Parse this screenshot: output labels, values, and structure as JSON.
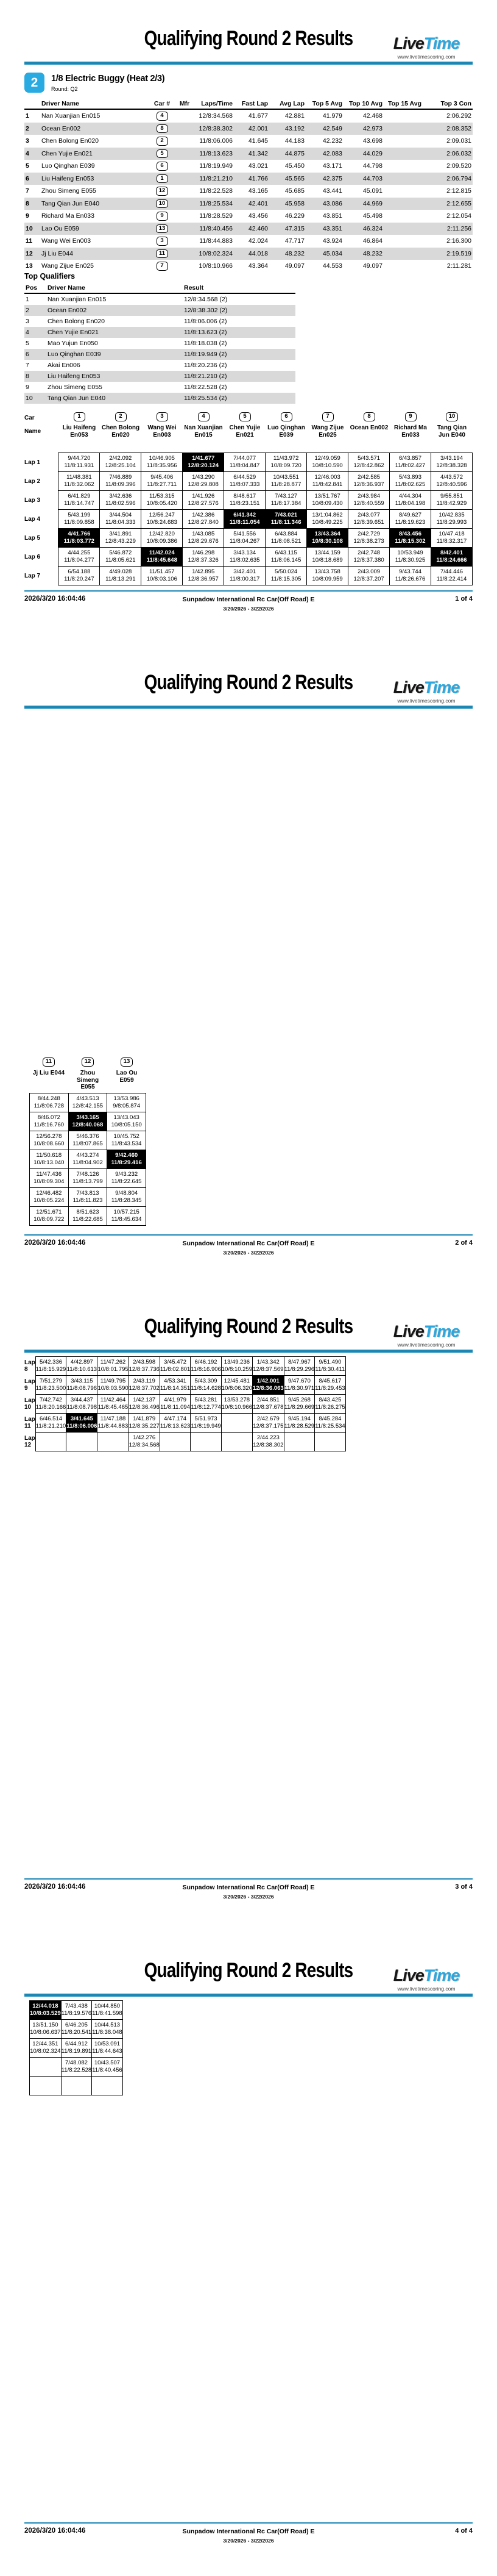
{
  "header": {
    "title": "Qualifying Round 2 Results",
    "logo_live": "Live",
    "logo_time": "Time",
    "url": "www.livetimescoring.com"
  },
  "footer": {
    "timestamp": "2026/3/20 16:04:46",
    "event": "Sunpadow International Rc Car(Off Road) E",
    "dates": "3/20/2026 - 3/22/2026",
    "pages": [
      "1 of 4",
      "2 of 4",
      "3 of 4",
      "4 of 4"
    ]
  },
  "heat": {
    "number": "2",
    "title": "1/8 Electric Buggy (Heat 2/3)",
    "round": "Round: Q2"
  },
  "results": {
    "columns": [
      "Driver Name",
      "Car #",
      "Mfr",
      "Laps/Time",
      "Fast Lap",
      "Avg Lap",
      "Top 5 Avg",
      "Top 10 Avg",
      "Top 15 Avg",
      "Top 3 Con"
    ],
    "rows": [
      [
        "1",
        "Nan Xuanjian En015",
        "4",
        "",
        "12/8:34.568",
        "41.677",
        "42.881",
        "41.979",
        "42.468",
        "",
        "2:06.292"
      ],
      [
        "2",
        "Ocean En002",
        "8",
        "",
        "12/8:38.302",
        "42.001",
        "43.192",
        "42.549",
        "42.973",
        "",
        "2:08.352"
      ],
      [
        "3",
        "Chen Bolong En020",
        "2",
        "",
        "11/8:06.006",
        "41.645",
        "44.183",
        "42.232",
        "43.698",
        "",
        "2:09.031"
      ],
      [
        "4",
        "Chen Yujie En021",
        "5",
        "",
        "11/8:13.623",
        "41.342",
        "44.875",
        "42.083",
        "44.029",
        "",
        "2:06.032"
      ],
      [
        "5",
        "Luo Qinghan E039",
        "6",
        "",
        "11/8:19.949",
        "43.021",
        "45.450",
        "43.171",
        "44.798",
        "",
        "2:09.520"
      ],
      [
        "6",
        "Liu Haifeng En053",
        "1",
        "",
        "11/8:21.210",
        "41.766",
        "45.565",
        "42.375",
        "44.703",
        "",
        "2:06.794"
      ],
      [
        "7",
        "Zhou Simeng E055",
        "12",
        "",
        "11/8:22.528",
        "43.165",
        "45.685",
        "43.441",
        "45.091",
        "",
        "2:12.815"
      ],
      [
        "8",
        "Tang Qian Jun E040",
        "10",
        "",
        "11/8:25.534",
        "42.401",
        "45.958",
        "43.086",
        "44.969",
        "",
        "2:12.655"
      ],
      [
        "9",
        "Richard Ma En033",
        "9",
        "",
        "11/8:28.529",
        "43.456",
        "46.229",
        "43.851",
        "45.498",
        "",
        "2:12.054"
      ],
      [
        "10",
        "Lao Ou E059",
        "13",
        "",
        "11/8:40.456",
        "42.460",
        "47.315",
        "43.351",
        "46.324",
        "",
        "2:11.256"
      ],
      [
        "11",
        "Wang Wei En003",
        "3",
        "",
        "11/8:44.883",
        "42.024",
        "47.717",
        "43.924",
        "46.864",
        "",
        "2:16.300"
      ],
      [
        "12",
        "Jj Liu E044",
        "11",
        "",
        "10/8:02.324",
        "44.018",
        "48.232",
        "45.034",
        "48.232",
        "",
        "2:19.519"
      ],
      [
        "13",
        "Wang Zijue En025",
        "7",
        "",
        "10/8:10.966",
        "43.364",
        "49.097",
        "44.553",
        "49.097",
        "",
        "2:11.281"
      ]
    ]
  },
  "top_qualifiers": {
    "title": "Top Qualifiers",
    "columns": [
      "Pos",
      "Driver Name",
      "Result"
    ],
    "rows": [
      [
        "1",
        "Nan Xuanjian En015",
        "12/8:34.568 (2)"
      ],
      [
        "2",
        "Ocean En002",
        "12/8:38.302 (2)"
      ],
      [
        "3",
        "Chen Bolong En020",
        "11/8:06.006 (2)"
      ],
      [
        "4",
        "Chen Yujie En021",
        "11/8:13.623 (2)"
      ],
      [
        "5",
        "Mao Yujun En050",
        "11/8:18.038 (2)"
      ],
      [
        "6",
        "Luo Qinghan E039",
        "11/8:19.949 (2)"
      ],
      [
        "7",
        "Akai En006",
        "11/8:20.236 (2)"
      ],
      [
        "8",
        "Liu Haifeng En053",
        "11/8:21.210 (2)"
      ],
      [
        "9",
        "Zhou Simeng E055",
        "11/8:22.528 (2)"
      ],
      [
        "10",
        "Tang Qian Jun E040",
        "11/8:25.534 (2)"
      ]
    ]
  },
  "lap_chart": {
    "car_label": "Car",
    "name_label": "Name",
    "lap_labels": [
      "Lap 1",
      "Lap 2",
      "Lap 3",
      "Lap 4",
      "Lap 5",
      "Lap 6",
      "Lap 7",
      "Lap 8",
      "Lap 9",
      "Lap 10",
      "Lap 11",
      "Lap 12"
    ],
    "cars": [
      {
        "num": "1",
        "name": "Liu Haifeng En053"
      },
      {
        "num": "2",
        "name": "Chen Bolong En020"
      },
      {
        "num": "3",
        "name": "Wang Wei En003"
      },
      {
        "num": "4",
        "name": "Nan Xuanjian En015"
      },
      {
        "num": "5",
        "name": "Chen Yujie En021"
      },
      {
        "num": "6",
        "name": "Luo Qinghan E039"
      },
      {
        "num": "7",
        "name": "Wang Zijue En025"
      },
      {
        "num": "8",
        "name": "Ocean En002"
      },
      {
        "num": "9",
        "name": "Richard Ma En033"
      },
      {
        "num": "10",
        "name": "Tang Qian Jun E040"
      },
      {
        "num": "11",
        "name": "Jj Liu E044"
      },
      {
        "num": "12",
        "name": "Zhou Simeng E055"
      },
      {
        "num": "13",
        "name": "Lao Ou E059"
      }
    ],
    "laps": [
      [
        [
          "9/44.720",
          "11/8:11.931",
          0
        ],
        [
          "2/42.092",
          "12/8:25.104",
          0
        ],
        [
          "10/46.905",
          "11/8:35.956",
          0
        ],
        [
          "1/41.677",
          "12/8:20.124",
          1
        ],
        [
          "7/44.077",
          "11/8:04.847",
          0
        ],
        [
          "11/43.972",
          "10/8:09.720",
          0
        ],
        [
          "12/49.059",
          "10/8:10.590",
          0
        ],
        [
          "5/43.571",
          "12/8:42.862",
          0
        ],
        [
          "6/43.857",
          "11/8:02.427",
          0
        ],
        [
          "3/43.194",
          "12/8:38.328",
          0
        ],
        [
          "8/44.248",
          "11/8:06.728",
          0
        ],
        [
          "4/43.513",
          "12/8:42.155",
          0
        ],
        [
          "13/53.986",
          "9/8:05.874",
          0
        ]
      ],
      [
        [
          "11/48.381",
          "11/8:32.062",
          0
        ],
        [
          "7/46.889",
          "11/8:09.396",
          0
        ],
        [
          "9/45.406",
          "11/8:27.711",
          0
        ],
        [
          "1/43.290",
          "12/8:29.808",
          0
        ],
        [
          "6/44.529",
          "11/8:07.333",
          0
        ],
        [
          "10/43.551",
          "11/8:28.877",
          0
        ],
        [
          "12/46.003",
          "11/8:42.841",
          0
        ],
        [
          "2/42.585",
          "12/8:36.937",
          0
        ],
        [
          "5/43.893",
          "11/8:02.625",
          0
        ],
        [
          "4/43.572",
          "12/8:40.596",
          0
        ],
        [
          "8/46.072",
          "11/8:16.760",
          0
        ],
        [
          "3/43.165",
          "12/8:40.068",
          1
        ],
        [
          "13/43.043",
          "10/8:05.150",
          0
        ]
      ],
      [
        [
          "6/41.829",
          "11/8:14.747",
          0
        ],
        [
          "3/42.636",
          "11/8:02.596",
          0
        ],
        [
          "11/53.315",
          "10/8:05.420",
          0
        ],
        [
          "1/41.926",
          "12/8:27.576",
          0
        ],
        [
          "8/48.617",
          "11/8:23.151",
          0
        ],
        [
          "7/43.127",
          "11/8:17.384",
          0
        ],
        [
          "13/51.767",
          "10/8:09.430",
          0
        ],
        [
          "2/43.984",
          "12/8:40.559",
          0
        ],
        [
          "4/44.304",
          "11/8:04.198",
          0
        ],
        [
          "9/55.851",
          "11/8:42.929",
          0
        ],
        [
          "12/56.278",
          "10/8:08.660",
          0
        ],
        [
          "5/46.376",
          "11/8:07.865",
          0
        ],
        [
          "10/45.752",
          "11/8:43.534",
          0
        ]
      ],
      [
        [
          "5/43.199",
          "11/8:09.858",
          0
        ],
        [
          "3/44.504",
          "11/8:04.333",
          0
        ],
        [
          "12/56.247",
          "10/8:24.683",
          0
        ],
        [
          "1/42.386",
          "12/8:27.840",
          0
        ],
        [
          "6/41.342",
          "11/8:11.054",
          1
        ],
        [
          "7/43.021",
          "11/8:11.346",
          1
        ],
        [
          "13/1:04.862",
          "10/8:49.225",
          0
        ],
        [
          "2/43.077",
          "12/8:39.651",
          0
        ],
        [
          "8/49.627",
          "11/8:19.623",
          0
        ],
        [
          "10/42.835",
          "11/8:29.993",
          0
        ],
        [
          "11/50.618",
          "10/8:13.040",
          0
        ],
        [
          "4/43.274",
          "11/8:04.902",
          0
        ],
        [
          "9/42.460",
          "11/8:29.416",
          1
        ]
      ],
      [
        [
          "4/41.766",
          "11/8:03.772",
          1
        ],
        [
          "3/41.891",
          "12/8:43.229",
          0
        ],
        [
          "12/42.820",
          "10/8:09.386",
          0
        ],
        [
          "1/43.085",
          "12/8:29.676",
          0
        ],
        [
          "5/41.556",
          "11/8:04.267",
          0
        ],
        [
          "6/43.884",
          "11/8:08.521",
          0
        ],
        [
          "13/43.364",
          "10/8:30.108",
          1
        ],
        [
          "2/42.729",
          "12/8:38.273",
          0
        ],
        [
          "8/43.456",
          "11/8:15.302",
          1
        ],
        [
          "10/47.418",
          "11/8:32.317",
          0
        ],
        [
          "11/47.436",
          "10/8:09.304",
          0
        ],
        [
          "7/48.126",
          "11/8:13.799",
          0
        ],
        [
          "9/43.232",
          "11/8:22.645",
          0
        ]
      ],
      [
        [
          "4/44.255",
          "11/8:04.277",
          0
        ],
        [
          "5/46.872",
          "11/8:05.621",
          0
        ],
        [
          "11/42.024",
          "11/8:45.648",
          1
        ],
        [
          "1/46.298",
          "12/8:37.326",
          0
        ],
        [
          "3/43.134",
          "11/8:02.635",
          0
        ],
        [
          "6/43.115",
          "11/8:06.145",
          0
        ],
        [
          "13/44.159",
          "10/8:18.689",
          0
        ],
        [
          "2/42.748",
          "12/8:37.380",
          0
        ],
        [
          "10/53.949",
          "11/8:30.925",
          0
        ],
        [
          "8/42.401",
          "11/8:24.666",
          1
        ],
        [
          "12/46.482",
          "10/8:05.224",
          0
        ],
        [
          "7/43.813",
          "11/8:11.823",
          0
        ],
        [
          "9/48.804",
          "11/8:28.345",
          0
        ]
      ],
      [
        [
          "6/54.188",
          "11/8:20.247",
          0
        ],
        [
          "4/49.028",
          "11/8:13.291",
          0
        ],
        [
          "11/51.457",
          "10/8:03.106",
          0
        ],
        [
          "1/42.895",
          "12/8:36.957",
          0
        ],
        [
          "3/42.401",
          "11/8:00.317",
          0
        ],
        [
          "5/50.024",
          "11/8:15.305",
          0
        ],
        [
          "13/43.758",
          "10/8:09.959",
          0
        ],
        [
          "2/43.009",
          "12/8:37.207",
          0
        ],
        [
          "9/43.744",
          "11/8:26.676",
          0
        ],
        [
          "7/44.446",
          "11/8:22.414",
          0
        ],
        [
          "12/51.671",
          "10/8:09.722",
          0
        ],
        [
          "8/51.623",
          "11/8:22.685",
          0
        ],
        [
          "10/57.215",
          "11/8:45.634",
          0
        ]
      ],
      [
        [
          "5/42.336",
          "11/8:15.929",
          0
        ],
        [
          "4/42.897",
          "11/8:10.613",
          0
        ],
        [
          "11/47.262",
          "10/8:01.795",
          0
        ],
        [
          "2/43.598",
          "12/8:37.736",
          0
        ],
        [
          "3/45.472",
          "11/8:02.801",
          0
        ],
        [
          "6/46.192",
          "11/8:16.906",
          0
        ],
        [
          "13/49.236",
          "10/8:10.259",
          0
        ],
        [
          "1/43.342",
          "12/8:37.569",
          0
        ],
        [
          "8/47.967",
          "11/8:29.296",
          0
        ],
        [
          "9/51.490",
          "11/8:30.411",
          0
        ],
        [
          "12/44.018",
          "10/8:03.529",
          1
        ],
        [
          "7/43.438",
          "11/8:19.576",
          0
        ],
        [
          "10/44.850",
          "11/8:41.598",
          0
        ]
      ],
      [
        [
          "7/51.279",
          "11/8:23.500",
          0
        ],
        [
          "3/43.115",
          "11/8:08.796",
          0
        ],
        [
          "11/49.795",
          "10/8:03.590",
          0
        ],
        [
          "2/43.119",
          "12/8:37.702",
          0
        ],
        [
          "4/53.341",
          "11/8:14.351",
          0
        ],
        [
          "5/43.309",
          "11/8:14.628",
          0
        ],
        [
          "12/45.481",
          "10/8:06.320",
          0
        ],
        [
          "1/42.001",
          "12/8:36.063",
          1
        ],
        [
          "9/47.670",
          "11/8:30.971",
          0
        ],
        [
          "8/45.617",
          "11/8:29.453",
          0
        ],
        [
          "13/51.150",
          "10/8:06.637",
          0
        ],
        [
          "6/46.205",
          "11/8:20.541",
          0
        ],
        [
          "10/44.513",
          "11/8:38.048",
          0
        ]
      ],
      [
        [
          "7/42.742",
          "11/8:20.166",
          0
        ],
        [
          "3/44.437",
          "11/8:08.798",
          0
        ],
        [
          "11/42.464",
          "11/8:45.465",
          0
        ],
        [
          "1/42.137",
          "12/8:36.496",
          0
        ],
        [
          "4/41.979",
          "11/8:11.094",
          0
        ],
        [
          "5/43.281",
          "11/8:12.774",
          0
        ],
        [
          "13/53.278",
          "10/8:10.966",
          0
        ],
        [
          "2/44.851",
          "12/8:37.678",
          0
        ],
        [
          "9/45.268",
          "11/8:29.669",
          0
        ],
        [
          "8/43.425",
          "11/8:26.275",
          0
        ],
        [
          "12/44.351",
          "10/8:02.324",
          0
        ],
        [
          "6/44.912",
          "11/8:19.891",
          0
        ],
        [
          "10/53.091",
          "11/8:44.643",
          0
        ]
      ],
      [
        [
          "6/46.514",
          "11/8:21.210",
          0
        ],
        [
          "3/41.645",
          "11/8:06.006",
          1
        ],
        [
          "11/47.188",
          "11/8:44.883",
          0
        ],
        [
          "1/41.879",
          "12/8:35.227",
          0
        ],
        [
          "4/47.174",
          "11/8:13.623",
          0
        ],
        [
          "5/51.973",
          "11/8:19.949",
          0
        ],
        null,
        [
          "2/42.679",
          "12/8:37.175",
          0
        ],
        [
          "9/45.194",
          "11/8:28.529",
          0
        ],
        [
          "8/45.284",
          "11/8:25.534",
          0
        ],
        null,
        [
          "7/48.082",
          "11/8:22.528",
          0
        ],
        [
          "10/43.507",
          "11/8:40.456",
          0
        ]
      ],
      [
        null,
        null,
        null,
        [
          "1/42.276",
          "12/8:34.568",
          0
        ],
        null,
        null,
        null,
        [
          "2/44.223",
          "12/8:38.302",
          0
        ],
        null,
        null,
        null,
        null,
        null
      ]
    ]
  }
}
